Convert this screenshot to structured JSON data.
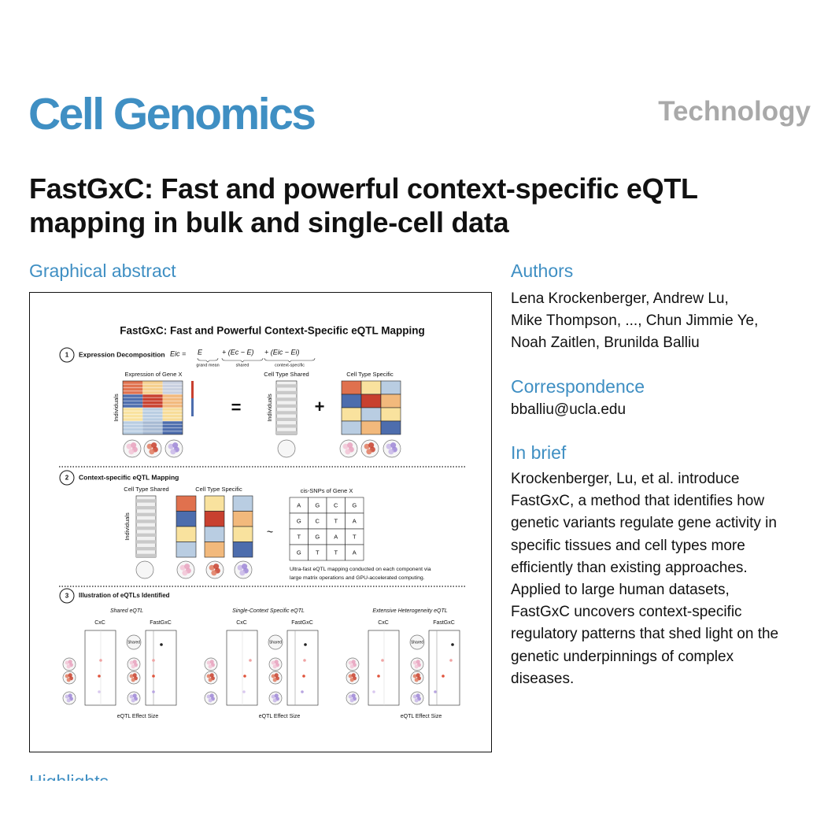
{
  "header": {
    "journal": "Cell Genomics",
    "article_type": "Technology"
  },
  "title": {
    "lines": [
      "FastGxC: Fast and powerful context-specific eQTL",
      "mapping in bulk and single-cell data"
    ]
  },
  "graphical_abstract": {
    "heading": "Graphical abstract",
    "title": "FastGxC: Fast and Powerful Context-Specific eQTL Mapping",
    "step1": {
      "number": "1",
      "label": "Expression Decomposition",
      "equation": {
        "lhs": "Eic =",
        "terms": [
          "E",
          "+ (Ec − E)",
          "+ (Eic − Ei)"
        ],
        "term_labels": [
          "grand mean",
          "shared",
          "context-specific"
        ]
      },
      "gene_label": "Expression of Gene X",
      "individuals": "Individuals",
      "equals": "=",
      "plus": "+",
      "shared": "Cell Type Shared",
      "specific": "Cell Type Specific"
    },
    "step2": {
      "number": "2",
      "label": "Context-specific eQTL Mapping",
      "shared": "Cell Type Shared",
      "specific": "Cell Type Specific",
      "individuals": "Individuals",
      "tilde": "~",
      "snps_label": "cis-SNPs of Gene X",
      "snps": [
        [
          "A",
          "G",
          "C",
          "G"
        ],
        [
          "G",
          "C",
          "T",
          "A"
        ],
        [
          "T",
          "G",
          "A",
          "T"
        ],
        [
          "G",
          "T",
          "T",
          "A"
        ]
      ],
      "note": [
        "Ultra-fast eQTL mapping conducted on each component via",
        "large matrix operations and GPU-accelerated computing."
      ]
    },
    "step3": {
      "number": "3",
      "label": "Illustration of eQTLs Identified",
      "panels": [
        {
          "title": "Shared eQTL",
          "cxc": "CxC",
          "fastgxc": "FastGxC",
          "tag": "Shared",
          "xlabel": "eQTL Effect Size"
        },
        {
          "title": "Single-Context Specific eQTL",
          "cxc": "CxC",
          "fastgxc": "FastGxC",
          "tag": "Shared",
          "xlabel": "eQTL Effect Size"
        },
        {
          "title": "Extensive Heterogeneity eQTL",
          "cxc": "CxC",
          "fastgxc": "FastGxC",
          "tag": "Shared",
          "xlabel": "eQTL Effect Size"
        }
      ]
    }
  },
  "authors": {
    "heading": "Authors",
    "lines": [
      "Lena Krockenberger, Andrew Lu,",
      "Mike Thompson, ..., Chun Jimmie Ye,",
      "Noah Zaitlen, Brunilda Balliu"
    ]
  },
  "correspondence": {
    "heading": "Correspondence",
    "email": "bballiu@ucla.edu"
  },
  "in_brief": {
    "heading": "In brief",
    "lines": [
      "Krockenberger, Lu, et al. introduce",
      "FastGxC, a method that identifies how",
      "genetic variants regulate gene activity in",
      "specific tissues and cell types more",
      "efficiently than existing approaches.",
      "Applied to large human datasets,",
      "FastGxC uncovers context-specific",
      "regulatory patterns that shed light on the",
      "genetic underpinnings of complex",
      "diseases."
    ]
  },
  "highlights": {
    "heading": "Highlights"
  }
}
